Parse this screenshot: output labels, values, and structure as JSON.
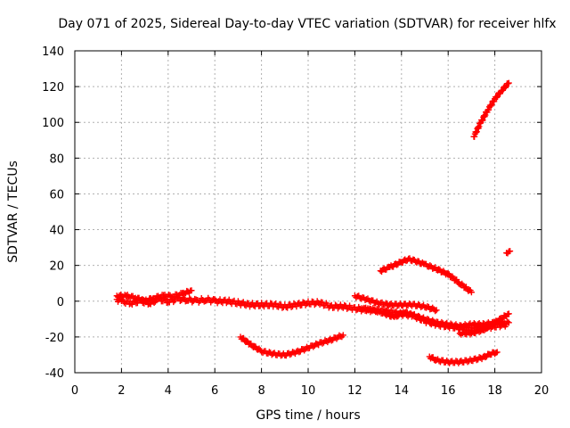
{
  "chart_data": {
    "type": "scatter",
    "title": "Day 071 of 2025, Sidereal Day-to-day VTEC variation (SDTVAR) for receiver hlfx",
    "xlabel": "GPS time / hours",
    "ylabel": "SDTVAR / TECUs",
    "xlim": [
      0,
      20
    ],
    "ylim": [
      -40,
      140
    ],
    "xticks": [
      0,
      2,
      4,
      6,
      8,
      10,
      12,
      14,
      16,
      18,
      20
    ],
    "yticks": [
      -40,
      -20,
      0,
      20,
      40,
      60,
      80,
      100,
      120,
      140
    ],
    "grid": true,
    "marker": "+",
    "series_color": "#ff0000",
    "tracks": [
      {
        "points": [
          [
            1.8,
            1
          ],
          [
            2.0,
            0
          ],
          [
            2.4,
            -1
          ],
          [
            2.8,
            0
          ],
          [
            3.2,
            -1
          ],
          [
            3.6,
            1
          ],
          [
            4.0,
            0
          ],
          [
            4.4,
            1
          ],
          [
            4.8,
            1
          ],
          [
            5.2,
            0
          ],
          [
            5.6,
            1
          ],
          [
            6.0,
            0
          ],
          [
            6.5,
            0
          ],
          [
            7.0,
            -1
          ],
          [
            7.5,
            -2
          ],
          [
            8.0,
            -2
          ],
          [
            8.5,
            -2
          ],
          [
            9.0,
            -3
          ],
          [
            9.5,
            -2
          ],
          [
            10.0,
            -1
          ],
          [
            10.5,
            -1
          ],
          [
            11.0,
            -3
          ],
          [
            11.5,
            -3
          ],
          [
            12.0,
            -4
          ],
          [
            12.5,
            -5
          ],
          [
            13.0,
            -5
          ],
          [
            13.5,
            -6
          ],
          [
            14.0,
            -7
          ],
          [
            14.5,
            -8
          ],
          [
            15.0,
            -11
          ],
          [
            15.5,
            -13
          ],
          [
            16.0,
            -14
          ],
          [
            16.5,
            -15
          ],
          [
            17.0,
            -16
          ],
          [
            17.5,
            -15
          ],
          [
            18.0,
            -14
          ],
          [
            18.5,
            -13
          ]
        ],
        "thickness": 6
      },
      {
        "points": [
          [
            1.8,
            3
          ],
          [
            2.2,
            3
          ],
          [
            2.6,
            2
          ],
          [
            3.0,
            0
          ],
          [
            3.4,
            2
          ],
          [
            3.8,
            3
          ],
          [
            4.2,
            3
          ],
          [
            4.6,
            4
          ],
          [
            5.0,
            6
          ]
        ],
        "thickness": 4
      },
      {
        "points": [
          [
            7.1,
            -20
          ],
          [
            7.5,
            -24
          ],
          [
            8.0,
            -28
          ],
          [
            8.5,
            -29.5
          ],
          [
            9.0,
            -30
          ],
          [
            9.5,
            -28.5
          ],
          [
            10.0,
            -26
          ],
          [
            10.5,
            -23.5
          ],
          [
            11.0,
            -21.5
          ],
          [
            11.5,
            -19
          ]
        ],
        "thickness": 4
      },
      {
        "points": [
          [
            12.0,
            3
          ],
          [
            12.5,
            1
          ],
          [
            13.0,
            -1
          ],
          [
            13.5,
            -2
          ],
          [
            14.0,
            -2
          ],
          [
            14.5,
            -2
          ],
          [
            15.0,
            -3
          ],
          [
            15.5,
            -5
          ]
        ],
        "thickness": 4
      },
      {
        "points": [
          [
            13.1,
            17
          ],
          [
            13.5,
            19
          ],
          [
            14.0,
            22
          ],
          [
            14.3,
            23.5
          ],
          [
            14.6,
            22.5
          ],
          [
            15.0,
            20.5
          ],
          [
            15.5,
            18
          ],
          [
            16.0,
            15
          ],
          [
            16.5,
            10
          ],
          [
            17.0,
            5
          ]
        ],
        "thickness": 4
      },
      {
        "points": [
          [
            12.3,
            -4
          ],
          [
            12.8,
            -5
          ],
          [
            13.3,
            -7
          ],
          [
            13.7,
            -9
          ],
          [
            14.1,
            -6
          ],
          [
            14.5,
            -8
          ],
          [
            15.0,
            -10
          ],
          [
            15.5,
            -12
          ],
          [
            16.0,
            -13
          ],
          [
            16.5,
            -14
          ],
          [
            17.0,
            -13
          ],
          [
            17.5,
            -13
          ],
          [
            18.0,
            -12
          ],
          [
            18.6,
            -12
          ]
        ],
        "thickness": 4
      },
      {
        "points": [
          [
            16.5,
            -18
          ],
          [
            17.0,
            -18
          ],
          [
            17.5,
            -16
          ],
          [
            18.0,
            -12
          ],
          [
            18.6,
            -7
          ]
        ],
        "thickness": 4
      },
      {
        "points": [
          [
            15.2,
            -31
          ],
          [
            15.5,
            -33
          ],
          [
            16.0,
            -34
          ],
          [
            16.5,
            -34
          ],
          [
            17.0,
            -33
          ],
          [
            17.5,
            -31.5
          ],
          [
            17.8,
            -29.5
          ],
          [
            18.1,
            -28.5
          ]
        ],
        "thickness": 4
      },
      {
        "points": [
          [
            17.1,
            92
          ],
          [
            17.4,
            100
          ],
          [
            17.7,
            107
          ],
          [
            18.0,
            113
          ],
          [
            18.3,
            118
          ],
          [
            18.6,
            122
          ]
        ],
        "thickness": 4
      },
      {
        "points": [
          [
            18.5,
            27
          ],
          [
            18.65,
            28
          ]
        ],
        "thickness": 3
      }
    ]
  }
}
